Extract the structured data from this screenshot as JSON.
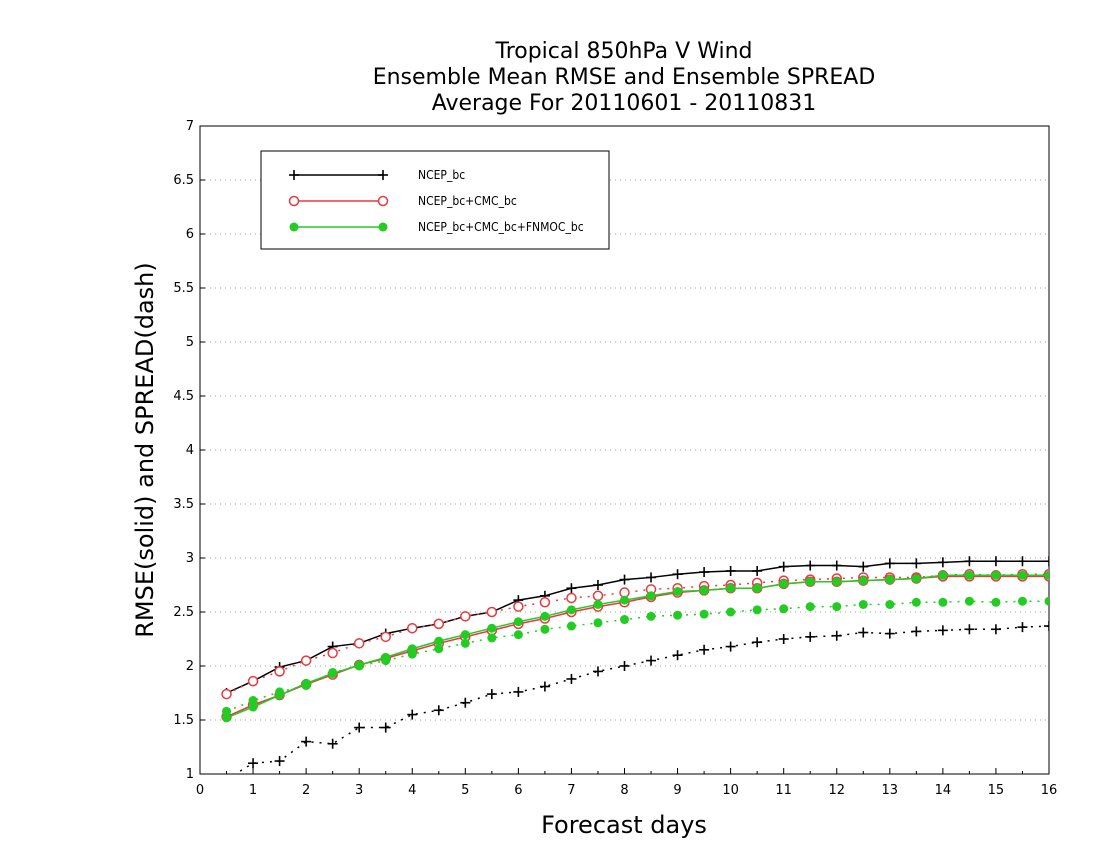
{
  "chart_data": {
    "type": "line",
    "title": [
      "Tropical 850hPa V Wind",
      "Ensemble Mean RMSE and Ensemble SPREAD",
      "Average For 20110601 - 20110831"
    ],
    "xlabel": "Forecast days",
    "ylabel": "RMSE(solid) and SPREAD(dash)",
    "xlim": [
      0,
      16
    ],
    "ylim": [
      1,
      7
    ],
    "xticks": [
      0,
      1,
      2,
      3,
      4,
      5,
      6,
      7,
      8,
      9,
      10,
      11,
      12,
      13,
      14,
      15,
      16
    ],
    "yticks": [
      1,
      1.5,
      2,
      2.5,
      3,
      3.5,
      4,
      4.5,
      5,
      5.5,
      6,
      6.5,
      7
    ],
    "xtick_labels": [
      "0",
      "1",
      "2",
      "3",
      "4",
      "5",
      "6",
      "7",
      "8",
      "9",
      "10",
      "11",
      "12",
      "13",
      "14",
      "15",
      "16"
    ],
    "ytick_labels": [
      "1",
      "1.5",
      "2",
      "2.5",
      "3",
      "3.5",
      "4",
      "4.5",
      "5",
      "5.5",
      "6",
      "6.5",
      "7"
    ],
    "grid": "horizontal dotted",
    "legend_position": "top-left",
    "x": [
      0.5,
      1,
      1.5,
      2,
      2.5,
      3,
      3.5,
      4,
      4.5,
      5,
      5.5,
      6,
      6.5,
      7,
      7.5,
      8,
      8.5,
      9,
      9.5,
      10,
      10.5,
      11,
      11.5,
      12,
      12.5,
      13,
      13.5,
      14,
      14.5,
      15,
      15.5,
      16
    ],
    "series": [
      {
        "name": "NCEP_bc",
        "color": "#000000",
        "marker": "plus",
        "rmse": [
          1.75,
          1.86,
          1.99,
          2.05,
          2.18,
          2.21,
          2.3,
          2.35,
          2.39,
          2.46,
          2.5,
          2.61,
          2.65,
          2.72,
          2.75,
          2.8,
          2.82,
          2.85,
          2.87,
          2.88,
          2.88,
          2.92,
          2.93,
          2.93,
          2.92,
          2.95,
          2.95,
          2.96,
          2.97,
          2.97,
          2.97,
          2.97
        ],
        "spread": [
          0.95,
          1.1,
          1.12,
          1.3,
          1.28,
          1.43,
          1.43,
          1.55,
          1.59,
          1.66,
          1.74,
          1.76,
          1.81,
          1.88,
          1.95,
          2.0,
          2.05,
          2.1,
          2.15,
          2.18,
          2.22,
          2.25,
          2.27,
          2.28,
          2.31,
          2.3,
          2.32,
          2.33,
          2.34,
          2.34,
          2.36,
          2.37
        ]
      },
      {
        "name": "NCEP_bc+CMC_bc",
        "color": "#e8393f",
        "marker": "open-circle",
        "rmse": [
          1.53,
          1.64,
          1.73,
          1.83,
          1.92,
          2.01,
          2.07,
          2.14,
          2.21,
          2.27,
          2.33,
          2.39,
          2.44,
          2.5,
          2.55,
          2.59,
          2.64,
          2.68,
          2.7,
          2.72,
          2.72,
          2.76,
          2.78,
          2.78,
          2.79,
          2.8,
          2.81,
          2.83,
          2.83,
          2.83,
          2.83,
          2.83
        ],
        "spread": [
          1.74,
          1.86,
          1.95,
          2.05,
          2.12,
          2.21,
          2.27,
          2.35,
          2.39,
          2.46,
          2.5,
          2.55,
          2.59,
          2.63,
          2.65,
          2.68,
          2.71,
          2.72,
          2.74,
          2.75,
          2.77,
          2.79,
          2.8,
          2.81,
          2.82,
          2.82,
          2.82,
          2.84,
          2.85,
          2.84,
          2.85,
          2.85
        ]
      },
      {
        "name": "NCEP_bc+CMC_bc+FNMOC_bc",
        "color": "#22cc22",
        "marker": "filled-circle",
        "rmse": [
          1.52,
          1.62,
          1.73,
          1.84,
          1.93,
          2.01,
          2.08,
          2.16,
          2.23,
          2.29,
          2.35,
          2.41,
          2.46,
          2.52,
          2.57,
          2.61,
          2.65,
          2.69,
          2.7,
          2.72,
          2.72,
          2.76,
          2.78,
          2.78,
          2.79,
          2.8,
          2.81,
          2.84,
          2.84,
          2.84,
          2.84,
          2.84
        ],
        "spread": [
          1.58,
          1.68,
          1.76,
          1.82,
          1.94,
          2.0,
          2.05,
          2.11,
          2.16,
          2.21,
          2.26,
          2.29,
          2.34,
          2.37,
          2.4,
          2.43,
          2.46,
          2.47,
          2.48,
          2.5,
          2.52,
          2.53,
          2.55,
          2.55,
          2.57,
          2.57,
          2.59,
          2.59,
          2.6,
          2.59,
          2.6,
          2.6
        ]
      }
    ]
  }
}
